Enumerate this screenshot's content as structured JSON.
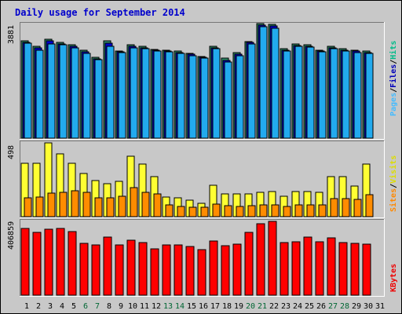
{
  "chart_data": {
    "type": "bar",
    "title": "Daily usage for September 2014",
    "categories": [
      "1",
      "2",
      "3",
      "4",
      "5",
      "6",
      "7",
      "8",
      "9",
      "10",
      "11",
      "12",
      "13",
      "14",
      "15",
      "16",
      "17",
      "18",
      "19",
      "20",
      "21",
      "22",
      "23",
      "24",
      "25",
      "26",
      "27",
      "28",
      "29",
      "30",
      "31"
    ],
    "weekend_days": [
      "6",
      "7",
      "13",
      "14",
      "20",
      "21",
      "27",
      "28"
    ],
    "weekend_color": "#006633",
    "weekday_color": "#000000",
    "panels": [
      {
        "id": "hits",
        "max_label": "3881",
        "ylim": [
          0,
          3881
        ],
        "legend": [
          {
            "text": "Pages",
            "color": "#44bbff"
          },
          {
            "text": "Files",
            "color": "#0000bb"
          },
          {
            "text": "Hits",
            "color": "#00bb88"
          }
        ],
        "series": [
          {
            "name": "Hits",
            "color": "#2e8b6b",
            "values": [
              3290,
              3120,
              3350,
              3240,
              3160,
              2970,
              2730,
              3300,
              2950,
              3170,
              3110,
              3010,
              2990,
              2960,
              2880,
              2770,
              3100,
              2700,
              2890,
              3270,
              3881,
              3850,
              3020,
              3180,
              3160,
              2990,
              3120,
              3030,
              2980,
              2960,
              null
            ]
          },
          {
            "name": "Files",
            "color": "#0000cc",
            "values": [
              3250,
              3050,
              3300,
              3200,
              3100,
              2920,
              2690,
              3220,
              2920,
              3120,
              3060,
              2970,
              2960,
              2910,
              2840,
              2730,
              3060,
              2640,
              2840,
              3230,
              3840,
              3800,
              2980,
              3140,
              3120,
              2950,
              3060,
              2990,
              2940,
              2910,
              null
            ]
          },
          {
            "name": "Pages",
            "color": "#22aaee",
            "values": [
              3220,
              2980,
              3200,
              3150,
              3050,
              2870,
              2650,
              3100,
              2890,
              3060,
              3020,
              2940,
              2920,
              2870,
              2790,
              2700,
              3020,
              2580,
              2780,
              3180,
              3780,
              3720,
              2940,
              3100,
              3080,
              2920,
              3020,
              2940,
              2900,
              2870,
              null
            ]
          }
        ]
      },
      {
        "id": "visits",
        "max_label": "498",
        "ylim": [
          0,
          498
        ],
        "legend": [
          {
            "text": "Sites",
            "color": "#ff8800"
          },
          {
            "text": "Visits",
            "color": "#dddd00"
          }
        ],
        "series": [
          {
            "name": "Visits",
            "color": "#ffff33",
            "values": [
              358,
              358,
              498,
              425,
              361,
              290,
              244,
              223,
              241,
              407,
              354,
              268,
              130,
              127,
              110,
              90,
              213,
              151,
              151,
              152,
              163,
              172,
              140,
              170,
              169,
              164,
              270,
              268,
              207,
              355,
              null
            ]
          },
          {
            "name": "Sites",
            "color": "#ff8c00",
            "values": [
              125,
              130,
              157,
              165,
              177,
              164,
              126,
              126,
              138,
              198,
              164,
              153,
              81,
              71,
              64,
              65,
              85,
              76,
              70,
              75,
              79,
              79,
              70,
              79,
              81,
              80,
              124,
              124,
              115,
              147,
              null
            ]
          }
        ]
      },
      {
        "id": "kbytes",
        "max_label": "406859",
        "ylim": [
          0,
          406859
        ],
        "legend": [
          {
            "text": "KBytes",
            "color": "#ee0000"
          }
        ],
        "series": [
          {
            "name": "KBytes",
            "color": "#ff0000",
            "values": [
              370000,
              345000,
              363000,
              370000,
              350000,
              285000,
              275000,
              320000,
              275000,
              302000,
              290000,
              256000,
              275000,
              277000,
              270000,
              253000,
              298000,
              272000,
              282000,
              345000,
              395000,
              406859,
              291000,
              293000,
              320000,
              293000,
              318000,
              292000,
              285000,
              280000,
              null
            ]
          }
        ]
      }
    ]
  }
}
